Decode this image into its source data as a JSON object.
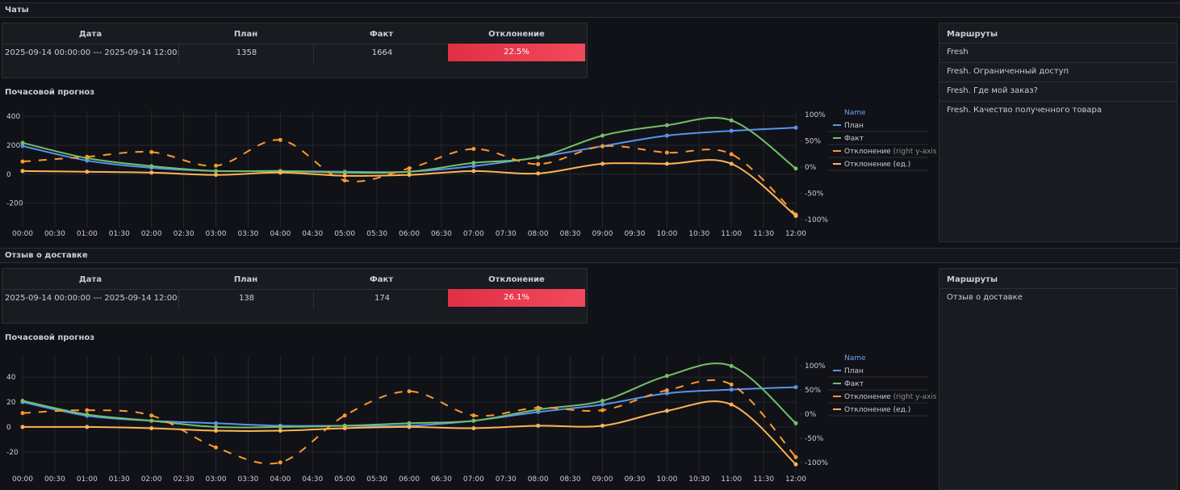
{
  "sections": [
    {
      "title": "Чаты",
      "table": {
        "headers": [
          "Дата",
          "План",
          "Факт",
          "Отклонение"
        ],
        "rows": [
          [
            "2025-09-14 00:00:00 --- 2025-09-14 12:00:00",
            "1358",
            "1664",
            "22.5%"
          ]
        ]
      },
      "routes": {
        "title": "Маршруты",
        "items": [
          "Fresh",
          "Fresh. Ограниченный доступ",
          "Fresh. Где мой заказ?",
          "Fresh. Качество полученного товара"
        ]
      },
      "chart": {
        "type": "line",
        "title": "Почасовой прогноз",
        "x": [
          0,
          1,
          2,
          3,
          4,
          5,
          6,
          7,
          8,
          9,
          10,
          11,
          12
        ],
        "xlim": [
          0,
          12
        ],
        "xticks": [
          {
            "value": 0,
            "label": "00:00"
          },
          {
            "value": 0.5,
            "label": "00:30"
          },
          {
            "value": 1,
            "label": "01:00"
          },
          {
            "value": 1.5,
            "label": "01:30"
          },
          {
            "value": 2,
            "label": "02:00"
          },
          {
            "value": 2.5,
            "label": "02:30"
          },
          {
            "value": 3,
            "label": "03:00"
          },
          {
            "value": 3.5,
            "label": "03:30"
          },
          {
            "value": 4,
            "label": "04:00"
          },
          {
            "value": 4.5,
            "label": "04:30"
          },
          {
            "value": 5,
            "label": "05:00"
          },
          {
            "value": 5.5,
            "label": "05:30"
          },
          {
            "value": 6,
            "label": "06:00"
          },
          {
            "value": 6.5,
            "label": "06:30"
          },
          {
            "value": 7,
            "label": "07:00"
          },
          {
            "value": 7.5,
            "label": "07:30"
          },
          {
            "value": 8,
            "label": "08:00"
          },
          {
            "value": 8.5,
            "label": "08:30"
          },
          {
            "value": 9,
            "label": "09:00"
          },
          {
            "value": 9.5,
            "label": "09:30"
          },
          {
            "value": 10,
            "label": "10:00"
          },
          {
            "value": 10.5,
            "label": "10:30"
          },
          {
            "value": 11,
            "label": "11:00"
          },
          {
            "value": 11.5,
            "label": "11:30"
          },
          {
            "value": 12,
            "label": "12:00"
          }
        ],
        "ylim": [
          -370,
          440
        ],
        "yticks": [
          400,
          200,
          0,
          -200
        ],
        "y2lim": [
          -115,
          108
        ],
        "y2ticks": [
          {
            "value": 100,
            "label": "100%"
          },
          {
            "value": 50,
            "label": "50%"
          },
          {
            "value": 0,
            "label": "0%"
          },
          {
            "value": -50,
            "label": "-50%"
          },
          {
            "value": -100,
            "label": "-100%"
          }
        ],
        "grid": true,
        "legend_title": "Name",
        "axis_note": "(right y-axis)",
        "series": [
          {
            "name": "План",
            "color": "#5794f2",
            "values": [
              195,
              94,
              44,
              22,
              22,
              17,
              17,
              56,
              117,
              194,
              267,
              300,
              322
            ]
          },
          {
            "name": "Факт",
            "color": "#73bf69",
            "values": [
              217,
              111,
              56,
              22,
              22,
              11,
              17,
              78,
              117,
              267,
              339,
              372,
              39
            ]
          },
          {
            "name": "Отклонение",
            "color": "#ff9830",
            "axis": "y2",
            "dashed": true,
            "values": [
              11,
              20,
              29,
              3,
              52,
              -25,
              -2,
              35,
              6,
              40,
              28,
              25,
              -90
            ]
          },
          {
            "name": "Отклонение (ед.)",
            "color": "#ffb357",
            "values": [
              22,
              17,
              11,
              -5,
              11,
              -11,
              -5,
              22,
              5,
              72,
              72,
              72,
              -289
            ]
          }
        ]
      }
    },
    {
      "title": "Отзыв о доставке",
      "table": {
        "headers": [
          "Дата",
          "План",
          "Факт",
          "Отклонение"
        ],
        "rows": [
          [
            "2025-09-14 00:00:00 --- 2025-09-14 12:00:00",
            "138",
            "174",
            "26.1%"
          ]
        ]
      },
      "routes": {
        "title": "Маршруты",
        "items": [
          "Отзыв о доставке"
        ]
      },
      "chart": {
        "type": "line",
        "title": "Почасовой прогноз",
        "x": [
          0,
          1,
          2,
          3,
          4,
          5,
          6,
          7,
          8,
          9,
          10,
          11,
          12
        ],
        "xlim": [
          0,
          12
        ],
        "xticks": [
          {
            "value": 0,
            "label": "00:00"
          },
          {
            "value": 0.5,
            "label": "00:30"
          },
          {
            "value": 1,
            "label": "01:00"
          },
          {
            "value": 1.5,
            "label": "01:30"
          },
          {
            "value": 2,
            "label": "02:00"
          },
          {
            "value": 2.5,
            "label": "02:30"
          },
          {
            "value": 3,
            "label": "03:00"
          },
          {
            "value": 3.5,
            "label": "03:30"
          },
          {
            "value": 4,
            "label": "04:00"
          },
          {
            "value": 4.5,
            "label": "04:30"
          },
          {
            "value": 5,
            "label": "05:00"
          },
          {
            "value": 5.5,
            "label": "05:30"
          },
          {
            "value": 6,
            "label": "06:00"
          },
          {
            "value": 6.5,
            "label": "06:30"
          },
          {
            "value": 7,
            "label": "07:00"
          },
          {
            "value": 7.5,
            "label": "07:30"
          },
          {
            "value": 8,
            "label": "08:00"
          },
          {
            "value": 8.5,
            "label": "08:30"
          },
          {
            "value": 9,
            "label": "09:00"
          },
          {
            "value": 9.5,
            "label": "09:30"
          },
          {
            "value": 10,
            "label": "10:00"
          },
          {
            "value": 10.5,
            "label": "10:30"
          },
          {
            "value": 11,
            "label": "11:00"
          },
          {
            "value": 11.5,
            "label": "11:30"
          },
          {
            "value": 12,
            "label": "12:00"
          }
        ],
        "ylim": [
          -37,
          57
        ],
        "yticks": [
          40,
          20,
          0,
          -20
        ],
        "y2lim": [
          -122,
          120
        ],
        "y2ticks": [
          {
            "value": 100,
            "label": "100%"
          },
          {
            "value": 50,
            "label": "50%"
          },
          {
            "value": 0,
            "label": "0%"
          },
          {
            "value": -50,
            "label": "-50%"
          },
          {
            "value": -100,
            "label": "-100%"
          }
        ],
        "grid": true,
        "legend_title": "Name",
        "axis_note": "(right y-axis)",
        "series": [
          {
            "name": "План",
            "color": "#5794f2",
            "values": [
              20,
              9,
              5,
              3,
              1,
              1,
              1,
              5,
              12,
              18,
              27,
              30,
              32
            ]
          },
          {
            "name": "Факт",
            "color": "#73bf69",
            "values": [
              21,
              10,
              5,
              0,
              0,
              1,
              3,
              5,
              14,
              21,
              41,
              49,
              3
            ]
          },
          {
            "name": "Отклонение",
            "color": "#ff9830",
            "axis": "y2",
            "dashed": true,
            "values": [
              2,
              8,
              -3,
              -69,
              -100,
              -3,
              47,
              -3,
              13,
              8,
              49,
              61,
              -89
            ]
          },
          {
            "name": "Отклонение (ед.)",
            "color": "#ffb357",
            "values": [
              0,
              0,
              -1,
              -3,
              -3,
              -1,
              0,
              -1,
              1,
              1,
              13,
              18,
              -30
            ]
          }
        ]
      }
    }
  ]
}
